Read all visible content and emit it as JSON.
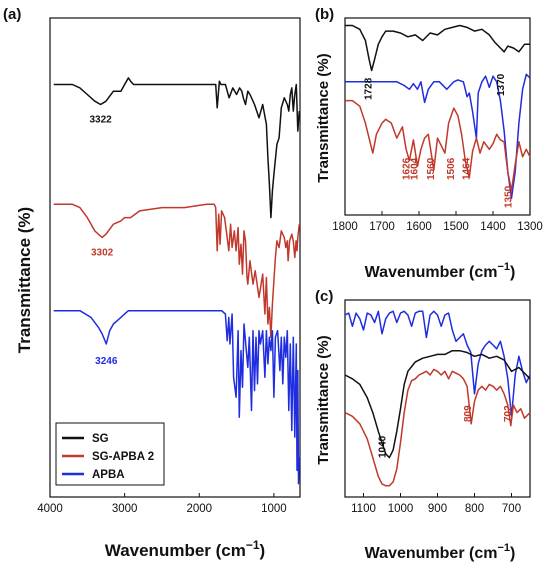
{
  "chart_data": [
    {
      "panel": "(a)",
      "type": "line",
      "xlabel": "Wavenumber (cm⁻¹)",
      "ylabel": "Transmittance (%)",
      "xlim": [
        4000,
        650
      ],
      "xticks": [
        4000,
        3000,
        2000,
        1000
      ],
      "legend_position": "bottom-left",
      "series": [
        {
          "name": "SG",
          "color": "#111111",
          "x": [
            3950,
            3700,
            3600,
            3500,
            3400,
            3322,
            3250,
            3150,
            3050,
            3000,
            2950,
            2920,
            2880,
            2800,
            2500,
            2200,
            1900,
            1780,
            1760,
            1730,
            1710,
            1650,
            1600,
            1550,
            1500,
            1460,
            1430,
            1410,
            1380,
            1350,
            1320,
            1260,
            1200,
            1150,
            1100,
            1080,
            1060,
            1040,
            1020,
            1000,
            960,
            930,
            900,
            860,
            820,
            800,
            780,
            760,
            740,
            720,
            700,
            680,
            660
          ],
          "y": [
            80,
            80,
            79,
            77,
            75,
            74,
            75,
            78,
            78,
            80,
            82,
            81,
            80,
            80,
            80,
            80,
            80,
            80,
            73,
            81,
            80,
            80,
            76,
            79,
            77,
            79,
            78,
            76,
            74,
            78,
            77,
            74,
            70,
            74,
            68,
            58,
            50,
            40,
            48,
            53,
            62,
            64,
            73,
            76,
            74,
            72,
            77,
            79,
            72,
            77,
            80,
            66,
            72
          ]
        },
        {
          "name": "SG-APBA 2",
          "color": "#c0392b",
          "x": [
            3950,
            3700,
            3600,
            3500,
            3400,
            3302,
            3250,
            3150,
            3050,
            3000,
            2920,
            2800,
            2500,
            2200,
            1900,
            1800,
            1780,
            1760,
            1740,
            1720,
            1700,
            1660,
            1620,
            1604,
            1580,
            1560,
            1530,
            1506,
            1480,
            1464,
            1440,
            1420,
            1400,
            1380,
            1360,
            1350,
            1320,
            1280,
            1250,
            1200,
            1150,
            1120,
            1100,
            1080,
            1060,
            1040,
            1020,
            1000,
            980,
            960,
            930,
            900,
            860,
            840,
            820,
            809,
            790,
            760,
            740,
            720,
            702,
            690,
            680,
            660
          ],
          "y": [
            44,
            44,
            43,
            40,
            36,
            34,
            35,
            38,
            39,
            40,
            40,
            42,
            43,
            43,
            44,
            44,
            43,
            30,
            41,
            32,
            42,
            40,
            33,
            30,
            38,
            31,
            36,
            30,
            37,
            26,
            32,
            23,
            36,
            33,
            22,
            20,
            27,
            20,
            24,
            16,
            23,
            11,
            22,
            8,
            13,
            4,
            14,
            21,
            28,
            33,
            31,
            36,
            34,
            31,
            33,
            27,
            33,
            35,
            33,
            28,
            33,
            30,
            34,
            38
          ]
        },
        {
          "name": "APBA",
          "color": "#1f2de0",
          "x": [
            3950,
            3600,
            3450,
            3350,
            3300,
            3246,
            3200,
            3150,
            3100,
            3050,
            3000,
            2950,
            2500,
            2200,
            1900,
            1700,
            1650,
            1626,
            1604,
            1590,
            1560,
            1540,
            1506,
            1480,
            1464,
            1440,
            1420,
            1400,
            1370,
            1350,
            1330,
            1300,
            1280,
            1260,
            1240,
            1220,
            1200,
            1180,
            1150,
            1120,
            1100,
            1080,
            1060,
            1040,
            1020,
            1000,
            980,
            950,
            920,
            900,
            880,
            860,
            840,
            820,
            800,
            780,
            760,
            740,
            720,
            700,
            690,
            680,
            670,
            660
          ],
          "y": [
            12,
            12,
            10,
            7,
            5,
            2,
            6,
            8,
            9,
            10,
            11,
            12,
            12,
            12,
            12,
            12,
            11,
            3,
            10,
            2,
            11,
            -8,
            -14,
            6,
            -20,
            0,
            -11,
            8,
            0,
            -5,
            4,
            -18,
            6,
            -12,
            4,
            -10,
            6,
            2,
            6,
            -8,
            6,
            -4,
            4,
            0,
            6,
            -14,
            4,
            6,
            -6,
            4,
            -10,
            4,
            -2,
            6,
            -18,
            2,
            -24,
            4,
            -26,
            2,
            -36,
            -6,
            -40,
            -32
          ]
        }
      ],
      "annotations": [
        {
          "text": "3322",
          "x": 3322,
          "series": "SG"
        },
        {
          "text": "3302",
          "x": 3302,
          "series": "SG-APBA 2"
        },
        {
          "text": "3246",
          "x": 3246,
          "series": "APBA"
        }
      ]
    },
    {
      "panel": "(b)",
      "type": "line",
      "xlabel": "Wavenumber (cm⁻¹)",
      "ylabel": "Transmittance (%)",
      "xlim": [
        1800,
        1300
      ],
      "xticks": [
        1800,
        1700,
        1600,
        1500,
        1400,
        1300
      ],
      "series": [
        {
          "name": "SG",
          "color": "#111111",
          "x": [
            1800,
            1780,
            1760,
            1745,
            1735,
            1728,
            1720,
            1710,
            1700,
            1690,
            1670,
            1650,
            1630,
            1610,
            1590,
            1570,
            1550,
            1530,
            1510,
            1490,
            1470,
            1450,
            1430,
            1410,
            1395,
            1380,
            1370,
            1360,
            1345,
            1330,
            1315,
            1300
          ],
          "y": [
            96,
            96,
            94,
            88,
            78,
            72,
            78,
            86,
            90,
            93,
            93,
            92,
            90,
            91,
            88,
            92,
            91,
            94,
            95,
            96,
            95,
            93,
            94,
            91,
            87,
            84,
            82,
            85,
            84,
            82,
            86,
            86
          ]
        },
        {
          "name": "APBA",
          "color": "#1f2de0",
          "x": [
            1800,
            1760,
            1720,
            1690,
            1660,
            1640,
            1626,
            1615,
            1604,
            1595,
            1585,
            1575,
            1560,
            1545,
            1525,
            1506,
            1495,
            1480,
            1470,
            1464,
            1455,
            1445,
            1440,
            1430,
            1420,
            1410,
            1400,
            1390,
            1380,
            1370,
            1360,
            1350,
            1340,
            1330,
            1320,
            1310,
            1300
          ],
          "y": [
            66,
            66,
            66,
            66,
            66,
            64,
            62,
            65,
            62,
            66,
            55,
            62,
            66,
            66,
            62,
            66,
            67,
            66,
            58,
            60,
            50,
            36,
            60,
            66,
            69,
            63,
            69,
            66,
            56,
            40,
            18,
            4,
            18,
            44,
            62,
            70,
            68
          ]
        },
        {
          "name": "SG-APBA 2",
          "color": "#c0392b",
          "x": [
            1800,
            1780,
            1760,
            1745,
            1730,
            1725,
            1715,
            1700,
            1690,
            1675,
            1660,
            1645,
            1635,
            1626,
            1615,
            1604,
            1595,
            1585,
            1575,
            1560,
            1550,
            1540,
            1530,
            1520,
            1506,
            1495,
            1485,
            1475,
            1464,
            1455,
            1445,
            1435,
            1425,
            1410,
            1400,
            1390,
            1380,
            1370,
            1360,
            1350,
            1340,
            1330,
            1320,
            1310,
            1300
          ],
          "y": [
            56,
            56,
            53,
            44,
            32,
            28,
            38,
            44,
            46,
            44,
            36,
            42,
            30,
            24,
            35,
            21,
            30,
            36,
            38,
            19,
            36,
            32,
            28,
            44,
            52,
            48,
            38,
            24,
            15,
            29,
            36,
            28,
            34,
            30,
            33,
            38,
            35,
            34,
            18,
            8,
            22,
            34,
            26,
            30,
            26
          ]
        }
      ],
      "annotations": [
        {
          "text": "1728",
          "x": 1728,
          "color": "#111111"
        },
        {
          "text": "1370",
          "x": 1370,
          "color": "#111111"
        },
        {
          "text": "1626",
          "x": 1626,
          "color": "#c0392b"
        },
        {
          "text": "1604",
          "x": 1604,
          "color": "#c0392b"
        },
        {
          "text": "1560",
          "x": 1560,
          "color": "#c0392b"
        },
        {
          "text": "1506",
          "x": 1506,
          "color": "#c0392b"
        },
        {
          "text": "1464",
          "x": 1464,
          "color": "#c0392b"
        },
        {
          "text": "1350",
          "x": 1350,
          "color": "#c0392b"
        }
      ]
    },
    {
      "panel": "(c)",
      "type": "line",
      "xlabel": "Wavenumber (cm⁻¹)",
      "ylabel": "Transmittance (%)",
      "xlim": [
        1150,
        650
      ],
      "xticks": [
        1100,
        1000,
        900,
        800,
        700
      ],
      "series": [
        {
          "name": "APBA",
          "color": "#1f2de0",
          "x": [
            1150,
            1140,
            1130,
            1120,
            1110,
            1100,
            1090,
            1080,
            1070,
            1060,
            1050,
            1040,
            1030,
            1020,
            1010,
            1000,
            990,
            980,
            970,
            960,
            950,
            940,
            930,
            920,
            910,
            900,
            890,
            880,
            870,
            860,
            850,
            840,
            830,
            820,
            810,
            800,
            790,
            780,
            770,
            760,
            750,
            740,
            730,
            720,
            710,
            700,
            690,
            680,
            670,
            660,
            650
          ],
          "y": [
            92,
            93,
            86,
            93,
            90,
            84,
            93,
            92,
            88,
            94,
            82,
            90,
            93,
            94,
            88,
            93,
            94,
            92,
            86,
            93,
            94,
            94,
            80,
            92,
            94,
            92,
            86,
            92,
            93,
            84,
            78,
            80,
            82,
            76,
            72,
            50,
            66,
            73,
            76,
            78,
            76,
            74,
            78,
            70,
            58,
            38,
            60,
            70,
            62,
            56,
            60
          ]
        },
        {
          "name": "SG",
          "color": "#111111",
          "x": [
            1150,
            1130,
            1110,
            1090,
            1075,
            1060,
            1050,
            1040,
            1030,
            1020,
            1010,
            1000,
            990,
            980,
            960,
            940,
            920,
            900,
            880,
            860,
            840,
            820,
            800,
            780,
            760,
            740,
            720,
            700,
            680,
            660,
            650
          ],
          "y": [
            60,
            58,
            55,
            48,
            40,
            30,
            24,
            18,
            16,
            20,
            30,
            42,
            55,
            62,
            67,
            69,
            70,
            71,
            71,
            73,
            73,
            72,
            70,
            71,
            69,
            70,
            68,
            62,
            64,
            60,
            58
          ]
        },
        {
          "name": "SG-APBA 2",
          "color": "#c0392b",
          "x": [
            1150,
            1130,
            1110,
            1090,
            1075,
            1060,
            1050,
            1040,
            1030,
            1020,
            1010,
            1000,
            990,
            980,
            970,
            960,
            950,
            940,
            930,
            920,
            910,
            900,
            890,
            880,
            870,
            860,
            850,
            840,
            830,
            820,
            809,
            800,
            790,
            780,
            770,
            760,
            750,
            740,
            730,
            720,
            710,
            702,
            695,
            685,
            675,
            665,
            650
          ],
          "y": [
            40,
            38,
            34,
            26,
            16,
            6,
            2,
            1,
            1,
            3,
            10,
            24,
            40,
            52,
            57,
            58,
            60,
            61,
            62,
            60,
            63,
            62,
            60,
            62,
            58,
            62,
            61,
            60,
            58,
            54,
            34,
            46,
            52,
            54,
            52,
            55,
            54,
            52,
            54,
            50,
            44,
            33,
            44,
            40,
            42,
            37,
            40
          ]
        }
      ],
      "annotations": [
        {
          "text": "1040",
          "x": 1040,
          "color": "#111111"
        },
        {
          "text": "809",
          "x": 809,
          "color": "#c0392b"
        },
        {
          "text": "702",
          "x": 702,
          "color": "#c0392b"
        }
      ]
    }
  ],
  "labels": {
    "panel_a": "(a)",
    "panel_b": "(b)",
    "panel_c": "(c)",
    "ylabel": "Transmittance (%)",
    "xlabel_main": "Wavenumber (cm",
    "xlabel_sup": "−1",
    "xlabel_close": ")"
  }
}
